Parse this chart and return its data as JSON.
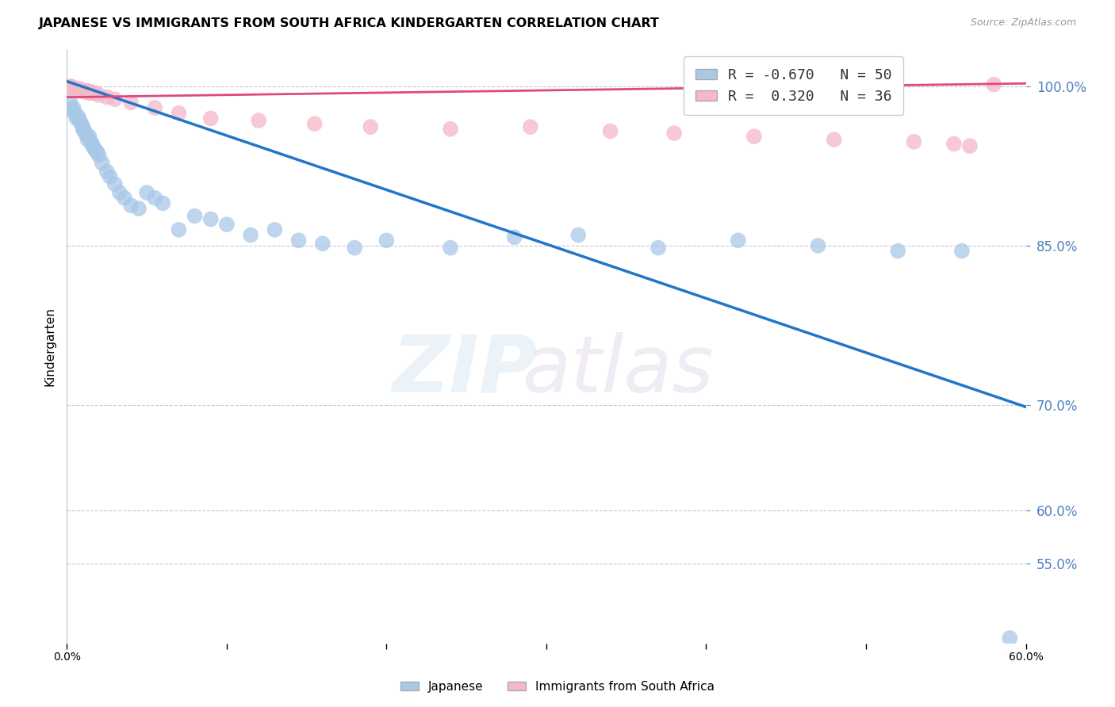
{
  "title": "JAPANESE VS IMMIGRANTS FROM SOUTH AFRICA KINDERGARTEN CORRELATION CHART",
  "source": "Source: ZipAtlas.com",
  "ylabel": "Kindergarten",
  "xlim": [
    0.0,
    0.6
  ],
  "ylim": [
    0.475,
    1.035
  ],
  "ytick_vals": [
    0.55,
    0.6,
    0.7,
    0.85,
    1.0
  ],
  "ytick_labels": [
    "55.0%",
    "60.0%",
    "70.0%",
    "85.0%",
    "100.0%"
  ],
  "xtick_vals": [
    0.0,
    0.1,
    0.2,
    0.3,
    0.4,
    0.5,
    0.6
  ],
  "xtick_label_left": "0.0%",
  "xtick_label_right": "60.0%",
  "legend_r1": "R = -0.670",
  "legend_n1": "N = 50",
  "legend_r2": "R =  0.320",
  "legend_n2": "N = 36",
  "blue_color": "#a8c8e8",
  "pink_color": "#f4b8c8",
  "blue_line_color": "#2176c8",
  "pink_line_color": "#e04880",
  "background_color": "#ffffff",
  "grid_color": "#c8c8d8",
  "ytick_color": "#5080c0",
  "blue_scatter_x": [
    0.002,
    0.003,
    0.004,
    0.005,
    0.006,
    0.007,
    0.008,
    0.009,
    0.01,
    0.01,
    0.011,
    0.012,
    0.013,
    0.014,
    0.015,
    0.016,
    0.017,
    0.018,
    0.019,
    0.02,
    0.022,
    0.025,
    0.027,
    0.03,
    0.033,
    0.036,
    0.04,
    0.045,
    0.05,
    0.055,
    0.06,
    0.07,
    0.08,
    0.09,
    0.1,
    0.115,
    0.13,
    0.145,
    0.16,
    0.18,
    0.2,
    0.24,
    0.28,
    0.32,
    0.37,
    0.42,
    0.47,
    0.52,
    0.56,
    0.59
  ],
  "blue_scatter_y": [
    0.985,
    0.978,
    0.98,
    0.975,
    0.97,
    0.972,
    0.968,
    0.965,
    0.96,
    0.962,
    0.958,
    0.955,
    0.95,
    0.953,
    0.948,
    0.945,
    0.942,
    0.94,
    0.938,
    0.935,
    0.928,
    0.92,
    0.915,
    0.908,
    0.9,
    0.895,
    0.888,
    0.885,
    0.9,
    0.895,
    0.89,
    0.865,
    0.878,
    0.875,
    0.87,
    0.86,
    0.865,
    0.855,
    0.852,
    0.848,
    0.855,
    0.848,
    0.858,
    0.86,
    0.848,
    0.855,
    0.85,
    0.845,
    0.845,
    0.48
  ],
  "pink_scatter_x": [
    0.002,
    0.003,
    0.004,
    0.005,
    0.006,
    0.007,
    0.008,
    0.009,
    0.01,
    0.011,
    0.012,
    0.013,
    0.014,
    0.015,
    0.016,
    0.018,
    0.02,
    0.025,
    0.03,
    0.04,
    0.055,
    0.07,
    0.09,
    0.12,
    0.155,
    0.19,
    0.24,
    0.29,
    0.34,
    0.38,
    0.43,
    0.48,
    0.53,
    0.555,
    0.565,
    0.58
  ],
  "pink_scatter_y": [
    1.0,
    1.0,
    0.998,
    0.998,
    0.998,
    0.996,
    0.998,
    0.996,
    0.996,
    0.996,
    0.995,
    0.996,
    0.994,
    0.995,
    0.994,
    0.994,
    0.992,
    0.99,
    0.988,
    0.985,
    0.98,
    0.975,
    0.97,
    0.968,
    0.965,
    0.962,
    0.96,
    0.962,
    0.958,
    0.956,
    0.953,
    0.95,
    0.948,
    0.946,
    0.944,
    1.002
  ],
  "blue_trendline_x": [
    0.0,
    0.6
  ],
  "blue_trendline_y": [
    1.005,
    0.698
  ],
  "pink_trendline_x": [
    0.0,
    0.6
  ],
  "pink_trendline_y": [
    0.99,
    1.003
  ]
}
